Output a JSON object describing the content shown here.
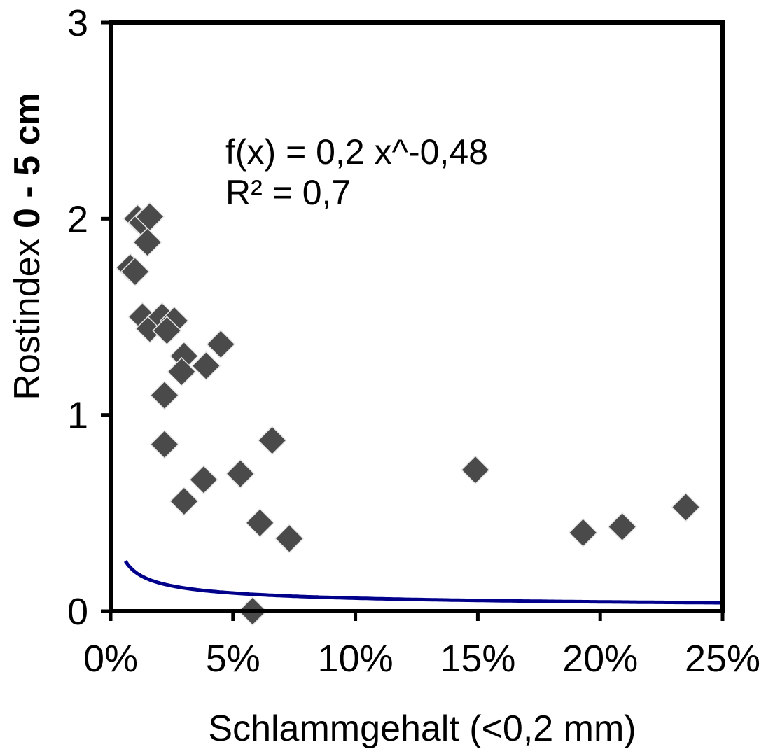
{
  "chart_data": {
    "type": "scatter",
    "title": "",
    "xlabel": "Schlammgehalt (<0,2 mm)",
    "ylabel_parts": [
      "Rostindex ",
      " 0 - 5 cm"
    ],
    "xlim": [
      0,
      0.25
    ],
    "ylim": [
      0,
      3
    ],
    "x_tick_labels": [
      "0%",
      "5%",
      "10%",
      "15%",
      "20%",
      "25%"
    ],
    "x_ticks": [
      0,
      0.05,
      0.1,
      0.15,
      0.2,
      0.25
    ],
    "y_tick_labels": [
      "0",
      "1",
      "2",
      "3"
    ],
    "y_ticks": [
      0,
      1,
      2,
      3
    ],
    "grid": false,
    "legend": "none",
    "annotations": [
      "f(x) = 0,2 x^-0,48",
      "R² = 0,7"
    ],
    "marker_color": "#4a4a4a",
    "trend_color": "#00008b",
    "series": [
      {
        "marker": "diamond",
        "points": [
          [
            0.008,
            1.75
          ],
          [
            0.01,
            1.73
          ],
          [
            0.011,
            2.0
          ],
          [
            0.013,
            1.98
          ],
          [
            0.016,
            2.01
          ],
          [
            0.015,
            1.88
          ],
          [
            0.013,
            1.5
          ],
          [
            0.016,
            1.44
          ],
          [
            0.021,
            1.5
          ],
          [
            0.026,
            1.48
          ],
          [
            0.023,
            1.43
          ],
          [
            0.03,
            1.3
          ],
          [
            0.029,
            1.22
          ],
          [
            0.039,
            1.25
          ],
          [
            0.045,
            1.36
          ],
          [
            0.022,
            1.1
          ],
          [
            0.022,
            0.85
          ],
          [
            0.038,
            0.67
          ],
          [
            0.03,
            0.56
          ],
          [
            0.053,
            0.7
          ],
          [
            0.066,
            0.87
          ],
          [
            0.061,
            0.45
          ],
          [
            0.073,
            0.37
          ],
          [
            0.058,
            0.0
          ],
          [
            0.149,
            0.72
          ],
          [
            0.193,
            0.4
          ],
          [
            0.209,
            0.43
          ],
          [
            0.235,
            0.53
          ]
        ]
      }
    ],
    "trendline": {
      "type": "power",
      "a": 0.2,
      "b": -0.48,
      "x_from": 0.006,
      "x_to": 0.25
    }
  }
}
